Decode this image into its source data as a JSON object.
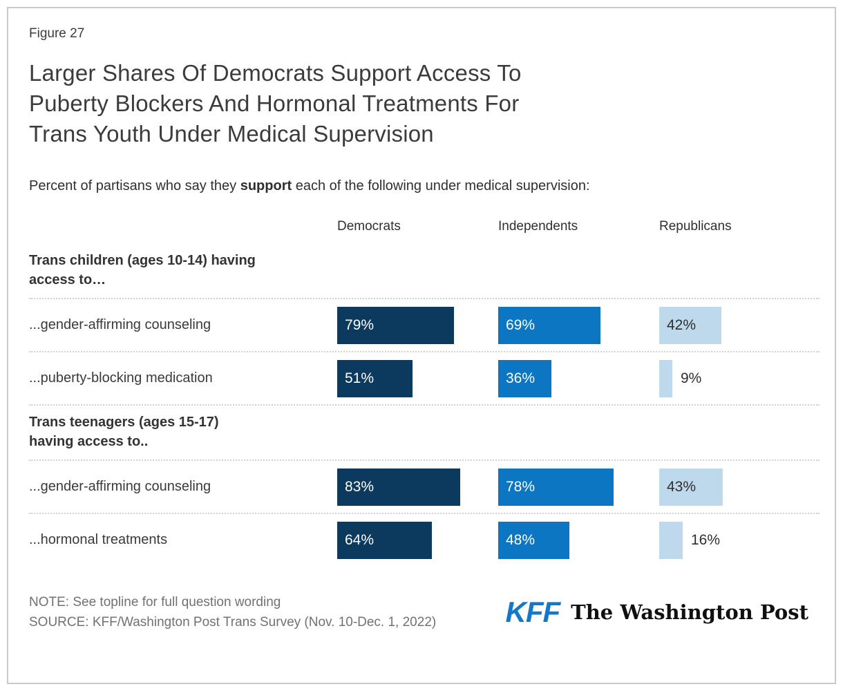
{
  "figure_label": "Figure 27",
  "title_lines": [
    "Larger Shares Of Democrats Support Access To",
    "Puberty Blockers And Hormonal Treatments For",
    "Trans Youth Under Medical Supervision"
  ],
  "subtitle": {
    "pre": "Percent of partisans who say they ",
    "bold": "support",
    "post": " each of the following under medical supervision:"
  },
  "chart_data": {
    "type": "bar",
    "orientation": "horizontal",
    "unit": "%",
    "xlim": [
      0,
      100
    ],
    "grid": false,
    "legend_position": "column-headers",
    "series_names": [
      "Democrats",
      "Independents",
      "Republicans"
    ],
    "series_colors": [
      "#0B3A5E",
      "#0D76C3",
      "#BFD9EC"
    ],
    "groups": [
      {
        "label": "Trans children (ages 10-14) having access to…",
        "label_lines": [
          "Trans children (ages 10-14) having",
          "access to…"
        ],
        "rows": [
          {
            "label": "...gender-affirming counseling",
            "values": [
              79,
              69,
              42
            ]
          },
          {
            "label": "...puberty-blocking medication",
            "values": [
              51,
              36,
              9
            ]
          }
        ]
      },
      {
        "label": "Trans teenagers (ages 15-17) having access to..",
        "label_lines": [
          "Trans teenagers (ages 15-17)",
          "having access to.."
        ],
        "rows": [
          {
            "label": "...gender-affirming counseling",
            "values": [
              83,
              78,
              43
            ]
          },
          {
            "label": "...hormonal treatments",
            "values": [
              64,
              48,
              16
            ]
          }
        ]
      }
    ]
  },
  "footer": {
    "note": "NOTE: See topline for full question wording",
    "source": "SOURCE: KFF/Washington Post Trans Survey (Nov. 10-Dec. 1, 2022)",
    "kff_logo": "KFF",
    "wapo_logo": "The Washington Post"
  }
}
